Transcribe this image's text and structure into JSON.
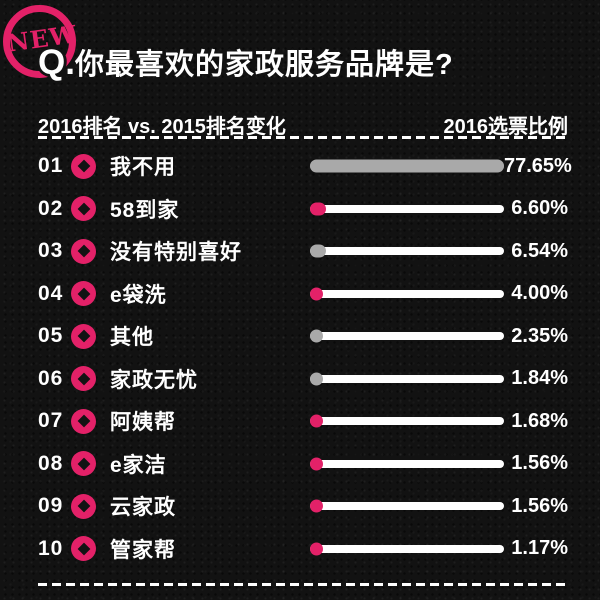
{
  "badge": {
    "label": "NEW"
  },
  "header": {
    "q_prefix": "Q.",
    "title": "你最喜欢的家政服务品牌是?",
    "col_left": "2016排名 vs. 2015排名变化",
    "col_right": "2016选票比例"
  },
  "colors": {
    "pink": "#e32168",
    "gray": "#a9a9a9",
    "white": "#ffffff",
    "background": "#131313"
  },
  "chart_data": {
    "type": "bar",
    "orientation": "horizontal",
    "title": "你最喜欢的家政服务品牌是?",
    "subtitle_left": "2016排名 vs. 2015排名变化",
    "subtitle_right": "2016选票比例",
    "xlim": [
      0,
      77.65
    ],
    "grid": false,
    "legend": "none",
    "ranks": [
      "01",
      "02",
      "03",
      "04",
      "05",
      "06",
      "07",
      "08",
      "09",
      "10"
    ],
    "categories": [
      "我不用",
      "58到家",
      "没有特别喜好",
      "e袋洗",
      "其他",
      "家政无忧",
      "阿姨帮",
      "e家洁",
      "云家政",
      "管家帮"
    ],
    "values": [
      77.65,
      6.6,
      6.54,
      4.0,
      2.35,
      1.84,
      1.68,
      1.56,
      1.56,
      1.17
    ],
    "value_labels": [
      "77.65%",
      "6.60%",
      "6.54%",
      "4.00%",
      "2.35%",
      "1.84%",
      "1.68%",
      "1.56%",
      "1.56%",
      "1.17%"
    ],
    "bar_colors": [
      "gray",
      "pink",
      "gray",
      "pink",
      "gray",
      "gray",
      "pink",
      "pink",
      "pink",
      "pink"
    ],
    "rank_marker": "pink-circle-diamond-hole"
  }
}
